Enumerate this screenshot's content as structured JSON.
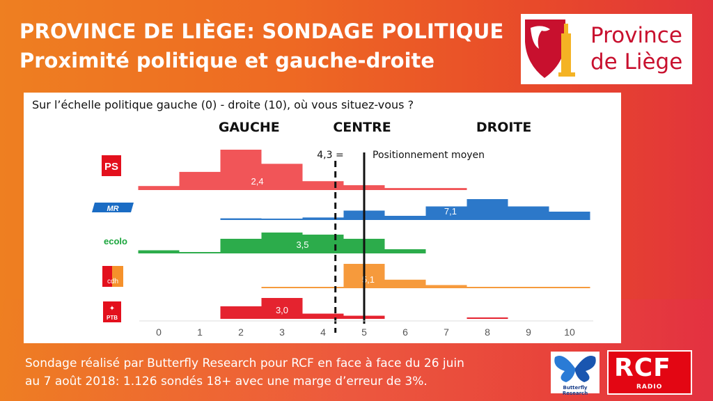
{
  "header": {
    "title": "PROVINCE DE LIÈGE: SONDAGE POLITIQUE",
    "subtitle": "Proximité politique et gauche-droite",
    "logo_line1": "Province",
    "logo_line2": "de Liège"
  },
  "chart_data": {
    "type": "bar",
    "question": "Sur l’échelle politique gauche (0) - droite (10), où vous situez-vous ?",
    "zones": [
      "GAUCHE",
      "CENTRE",
      "DROITE"
    ],
    "x_ticks": [
      "0",
      "1",
      "2",
      "3",
      "4",
      "5",
      "6",
      "7",
      "8",
      "9",
      "10"
    ],
    "xlim": [
      0,
      10
    ],
    "mean_marker": {
      "value": 4.3,
      "label": "4,3 =",
      "text": "Positionnement moyen"
    },
    "center_line": 5,
    "series": [
      {
        "name": "PS",
        "color": "#f0474a",
        "mean": 2.4,
        "mean_label": "2,4",
        "values": [
          0.1,
          0.45,
          1.0,
          0.65,
          0.22,
          0.12,
          0.05,
          0.05,
          0.0,
          0.0,
          0.0
        ]
      },
      {
        "name": "MR",
        "color": "#1a6cc4",
        "mean": 7.1,
        "mean_label": "7,1",
        "values": [
          0.0,
          0.0,
          0.08,
          0.05,
          0.12,
          0.45,
          0.2,
          0.65,
          1.0,
          0.65,
          0.4
        ]
      },
      {
        "name": "ecolo",
        "color": "#1aa53c",
        "mean": 3.5,
        "mean_label": "3,5",
        "values": [
          0.15,
          0.05,
          0.7,
          1.0,
          0.9,
          0.7,
          0.2,
          0.0,
          0.0,
          0.0,
          0.0
        ]
      },
      {
        "name": "cdH",
        "color": "#f5912b",
        "mean": 5.1,
        "mean_label": "5,1",
        "values": [
          0.0,
          0.0,
          0.0,
          0.03,
          0.05,
          1.0,
          0.35,
          0.13,
          0.05,
          0.05,
          0.05
        ]
      },
      {
        "name": "PTB",
        "color": "#e3101d",
        "mean": 3.0,
        "mean_label": "3,0",
        "values": [
          0.0,
          0.0,
          0.6,
          1.0,
          0.25,
          0.15,
          0.0,
          0.0,
          0.05,
          0.0,
          0.0
        ]
      }
    ]
  },
  "party_logos": {
    "ps": "PS",
    "mr": "MR",
    "ecolo": "ecolo",
    "cdh": "cdh",
    "ptb": "PTB"
  },
  "footer": {
    "line1": "Sondage réalisé par Butterfly Research pour RCF en face à face du 26 juin",
    "line2": "au 7 août 2018:  1.126 sondés 18+ avec une marge d’erreur de 3%."
  },
  "sponsors": {
    "butterfly": "Butterfly Research",
    "rcf": "RCF",
    "rcf_sub": "RADIO"
  }
}
